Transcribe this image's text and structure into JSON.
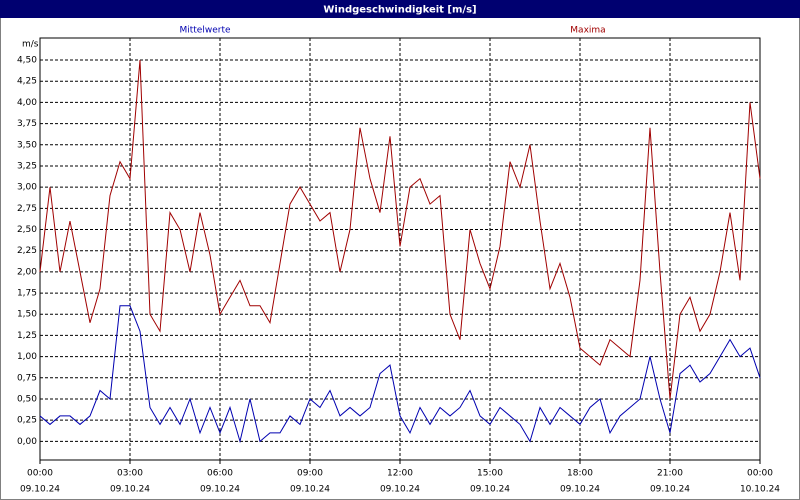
{
  "chart_data": {
    "type": "line",
    "title": "Windgeschwindigkeit [m/s]",
    "y_label": "m/s",
    "grid": true,
    "xlim": [
      0,
      1440
    ],
    "ylim": [
      -0.22,
      4.76
    ],
    "xticks": [
      {
        "value": 0,
        "label": "00:00"
      },
      {
        "value": 180,
        "label": "03:00"
      },
      {
        "value": 360,
        "label": "06:00"
      },
      {
        "value": 540,
        "label": "09:00"
      },
      {
        "value": 720,
        "label": "12:00"
      },
      {
        "value": 900,
        "label": "15:00"
      },
      {
        "value": 1080,
        "label": "18:00"
      },
      {
        "value": 1260,
        "label": "21:00"
      },
      {
        "value": 1440,
        "label": "00:00"
      }
    ],
    "xtick_dates": [
      "09.10.24",
      "09.10.24",
      "09.10.24",
      "09.10.24",
      "09.10.24",
      "09.10.24",
      "09.10.24",
      "09.10.24",
      "10.10.24"
    ],
    "yticks": [
      {
        "value": 0,
        "label": "0,00"
      },
      {
        "value": 0.25,
        "label": "0,25"
      },
      {
        "value": 0.5,
        "label": "0,50"
      },
      {
        "value": 0.75,
        "label": "0,75"
      },
      {
        "value": 1,
        "label": "1,00"
      },
      {
        "value": 1.25,
        "label": "1,25"
      },
      {
        "value": 1.5,
        "label": "1,50"
      },
      {
        "value": 1.75,
        "label": "1,75"
      },
      {
        "value": 2,
        "label": "2,00"
      },
      {
        "value": 2.25,
        "label": "2,25"
      },
      {
        "value": 2.5,
        "label": "2,50"
      },
      {
        "value": 2.75,
        "label": "2,75"
      },
      {
        "value": 3,
        "label": "3,00"
      },
      {
        "value": 3.25,
        "label": "3,25"
      },
      {
        "value": 3.5,
        "label": "3,50"
      },
      {
        "value": 3.75,
        "label": "3,75"
      },
      {
        "value": 4,
        "label": "4,00"
      },
      {
        "value": 4.25,
        "label": "4,25"
      },
      {
        "value": 4.5,
        "label": "4,50"
      }
    ],
    "x": [
      0,
      20,
      40,
      60,
      80,
      100,
      120,
      140,
      160,
      180,
      200,
      220,
      240,
      260,
      280,
      300,
      320,
      340,
      360,
      380,
      400,
      420,
      440,
      460,
      480,
      500,
      520,
      540,
      560,
      580,
      600,
      620,
      640,
      660,
      680,
      700,
      720,
      740,
      760,
      780,
      800,
      820,
      840,
      860,
      880,
      900,
      920,
      940,
      960,
      980,
      1000,
      1020,
      1040,
      1060,
      1080,
      1100,
      1120,
      1140,
      1160,
      1180,
      1200,
      1220,
      1240,
      1260,
      1280,
      1300,
      1320,
      1340,
      1360,
      1380,
      1400,
      1420,
      1440
    ],
    "series": [
      {
        "name": "Mittelwerte",
        "color": "#0000b0",
        "values": [
          0.3,
          0.2,
          0.3,
          0.3,
          0.2,
          0.3,
          0.6,
          0.5,
          1.6,
          1.6,
          1.3,
          0.4,
          0.2,
          0.4,
          0.2,
          0.5,
          0.1,
          0.4,
          0.1,
          0.4,
          0.0,
          0.5,
          0.0,
          0.1,
          0.1,
          0.3,
          0.2,
          0.5,
          0.4,
          0.6,
          0.3,
          0.4,
          0.3,
          0.4,
          0.8,
          0.9,
          0.3,
          0.1,
          0.4,
          0.2,
          0.4,
          0.3,
          0.4,
          0.6,
          0.3,
          0.2,
          0.4,
          0.3,
          0.2,
          0.0,
          0.4,
          0.2,
          0.4,
          0.3,
          0.2,
          0.4,
          0.5,
          0.1,
          0.3,
          0.4,
          0.5,
          1.0,
          0.5,
          0.1,
          0.8,
          0.9,
          0.7,
          0.8,
          1.0,
          1.2,
          1.0,
          1.1,
          0.75
        ]
      },
      {
        "name": "Maxima",
        "color": "#a00000",
        "values": [
          2.0,
          3.0,
          2.0,
          2.6,
          2.0,
          1.4,
          1.8,
          2.9,
          3.3,
          3.1,
          4.5,
          1.5,
          1.3,
          2.7,
          2.5,
          2.0,
          2.7,
          2.2,
          1.5,
          1.7,
          1.9,
          1.6,
          1.6,
          1.4,
          2.1,
          2.8,
          3.0,
          2.8,
          2.6,
          2.7,
          2.0,
          2.5,
          3.7,
          3.1,
          2.7,
          3.6,
          2.3,
          3.0,
          3.1,
          2.8,
          2.9,
          1.5,
          1.2,
          2.5,
          2.1,
          1.8,
          2.3,
          3.3,
          3.0,
          3.5,
          2.6,
          1.8,
          2.1,
          1.7,
          1.1,
          1.0,
          0.9,
          1.2,
          1.1,
          1.0,
          1.9,
          3.7,
          2.0,
          0.5,
          1.5,
          1.7,
          1.3,
          1.5,
          2.0,
          2.7,
          1.9,
          4.0,
          3.1
        ]
      }
    ]
  }
}
